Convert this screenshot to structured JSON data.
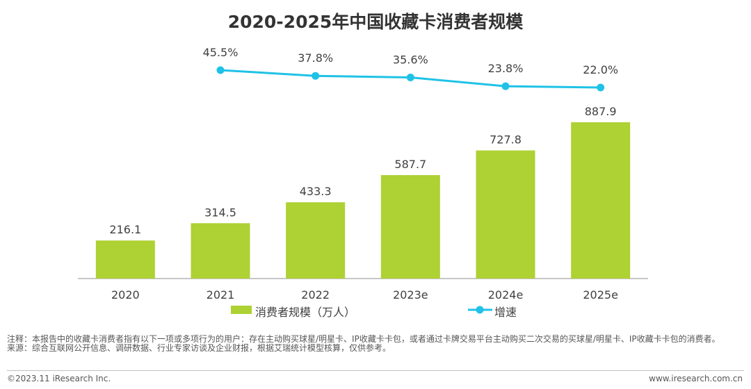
{
  "chart_data": {
    "type": "bar",
    "title": "2020-2025年中国收藏卡消费者规模",
    "categories": [
      "2020",
      "2021",
      "2022",
      "2023e",
      "2024e",
      "2025e"
    ],
    "series": [
      {
        "name": "消费者规模（万人）",
        "type": "bar",
        "values": [
          216.1,
          314.5,
          433.3,
          587.7,
          727.8,
          887.9
        ],
        "labels": [
          "216.1",
          "314.5",
          "433.3",
          "587.7",
          "727.8",
          "887.9"
        ],
        "color": "#aed133"
      },
      {
        "name": "增速",
        "type": "line",
        "values": [
          null,
          45.5,
          37.8,
          35.6,
          23.8,
          22.0
        ],
        "labels": [
          null,
          "45.5%",
          "37.8%",
          "35.6%",
          "23.8%",
          "22.0%"
        ],
        "color": "#1fc2e6"
      }
    ],
    "legend_position": "bottom",
    "grid": false
  },
  "notes": {
    "note": "注释：本报告中的收藏卡消费者指有以下一项或多项行为的用户：存在主动购买球星/明星卡、IP收藏卡卡包，或者通过卡牌交易平台主动购买二次交易的买球星/明星卡、IP收藏卡卡包的消费者。",
    "source": "来源：综合互联网公开信息、调研数据、行业专家访谈及企业财报，根据艾瑞统计模型核算，仅供参考。"
  },
  "footer": {
    "copyright": "©2023.11 iResearch Inc.",
    "website": "www.iresearch.com.cn"
  }
}
